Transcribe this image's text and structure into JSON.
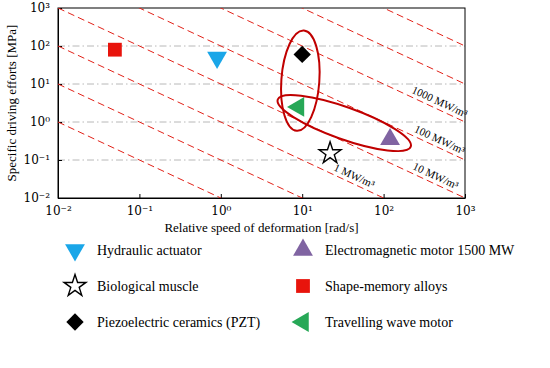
{
  "chart_data": {
    "type": "scatter",
    "x_label": "Relative speed of deformation [rad/s]",
    "y_label": "Specific driving efforts [MPa]",
    "log": true,
    "grid": "y",
    "legend": "bottom",
    "xlim": [
      0.01,
      1000
    ],
    "ylim": [
      0.01,
      1000
    ],
    "xticks": [
      {
        "value": 0.01,
        "label": "10⁻²"
      },
      {
        "value": 0.1,
        "label": "10⁻¹"
      },
      {
        "value": 1,
        "label": "10⁰"
      },
      {
        "value": 10,
        "label": "10¹"
      },
      {
        "value": 100,
        "label": "10²"
      },
      {
        "value": 1000,
        "label": "10³"
      }
    ],
    "yticks": [
      {
        "value": 0.01,
        "label": "10⁻²"
      },
      {
        "value": 0.1,
        "label": "10⁻¹"
      },
      {
        "value": 1,
        "label": "10⁰"
      },
      {
        "value": 10,
        "label": "10¹"
      },
      {
        "value": 100,
        "label": "10²"
      },
      {
        "value": 1000,
        "label": "10³"
      }
    ],
    "series": [
      {
        "name": "Hydraulic actuator",
        "color": "#1aa6e8",
        "marker": "triangle-down",
        "x": [
          0.9
        ],
        "values": [
          50
        ]
      },
      {
        "name": "Electromagnetic motor 1500 MW",
        "color": "#8064a2",
        "marker": "triangle-up",
        "x": [
          120
        ],
        "values": [
          0.35
        ]
      },
      {
        "name": "Biological muscle",
        "color": "#000000",
        "marker": "star",
        "x": [
          22
        ],
        "values": [
          0.15
        ]
      },
      {
        "name": "Shape-memory alloys",
        "color": "#e8140c",
        "marker": "square",
        "x": [
          0.05
        ],
        "values": [
          80
        ]
      },
      {
        "name": "Piezoelectric ceramics (PZT)",
        "color": "#000000",
        "marker": "diamond",
        "x": [
          10
        ],
        "values": [
          60
        ]
      },
      {
        "name": "Travelling wave motor",
        "color": "#27a857",
        "marker": "triangle-left",
        "x": [
          9
        ],
        "values": [
          2.5
        ]
      }
    ],
    "power_lines": [
      0.01,
      0.1,
      1,
      10,
      100,
      1000,
      10000,
      100000
    ],
    "power_line_labels": [
      {
        "value": 1000,
        "label": "1000 MW/m³"
      },
      {
        "value": 100,
        "label": "100 MW/m³"
      },
      {
        "value": 10,
        "label": "10 MW/m³"
      },
      {
        "value": 1,
        "label": "1 MW/m³"
      }
    ]
  }
}
